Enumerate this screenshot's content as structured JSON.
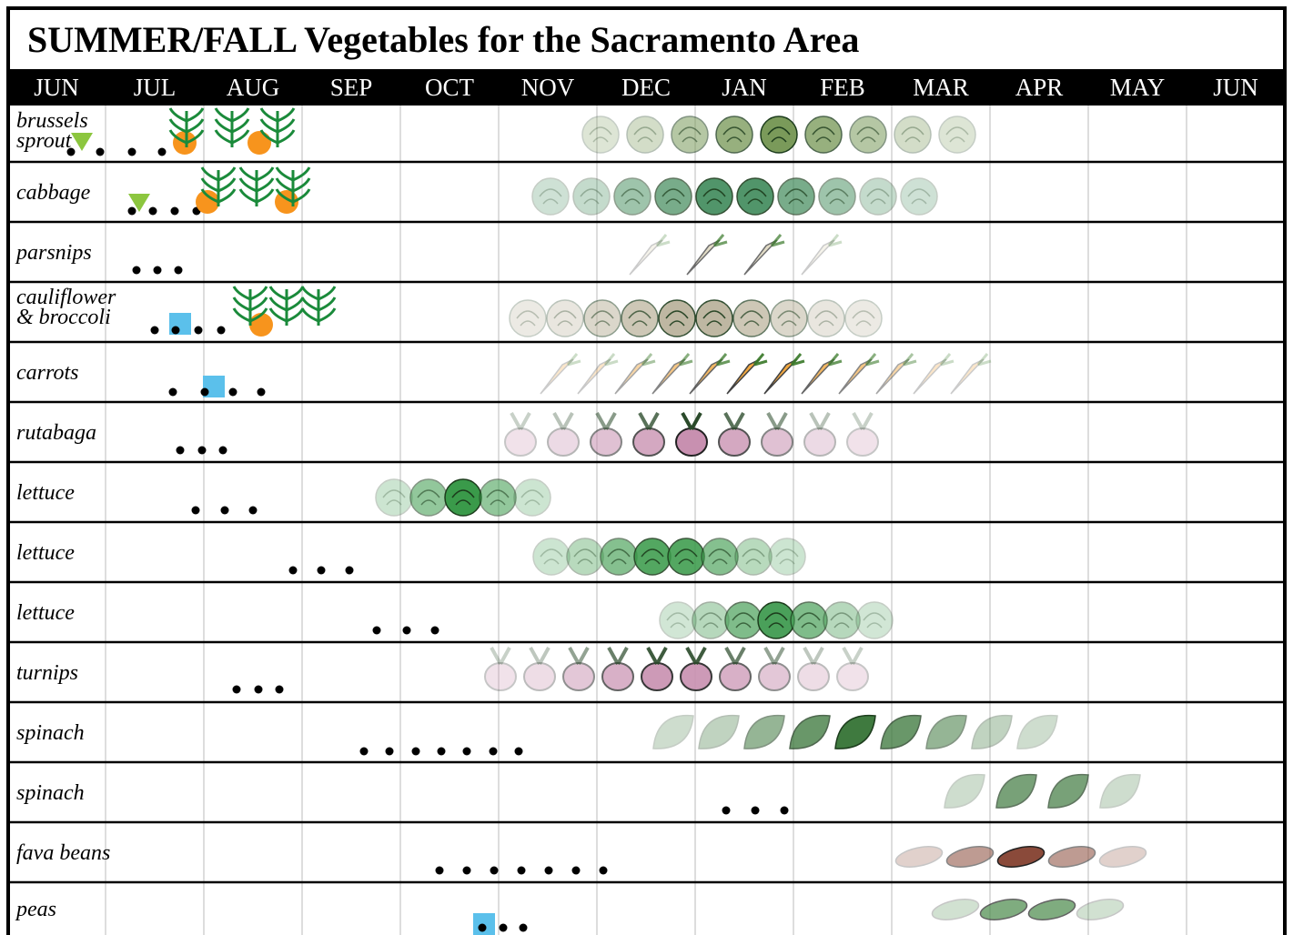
{
  "header": {
    "title": "SUMMER/FALL Vegetables for the Sacramento Area"
  },
  "months": [
    "JUN",
    "JUL",
    "AUG",
    "SEP",
    "OCT",
    "NOV",
    "DEC",
    "JAN",
    "FEB",
    "MAR",
    "APR",
    "MAY",
    "JUN"
  ],
  "rows": [
    {
      "label": [
        "brussels",
        "sprout"
      ]
    },
    {
      "label": [
        "cabbage"
      ]
    },
    {
      "label": [
        "parsnips"
      ]
    },
    {
      "label": [
        "cauliflower",
        "& broccoli"
      ]
    },
    {
      "label": [
        "carrots"
      ]
    },
    {
      "label": [
        "rutabaga"
      ]
    },
    {
      "label": [
        "lettuce"
      ]
    },
    {
      "label": [
        "lettuce"
      ]
    },
    {
      "label": [
        "lettuce"
      ]
    },
    {
      "label": [
        "turnips"
      ]
    },
    {
      "label": [
        "spinach"
      ]
    },
    {
      "label": [
        "spinach"
      ]
    },
    {
      "label": [
        "fava beans"
      ]
    },
    {
      "label": [
        "peas"
      ]
    }
  ]
}
